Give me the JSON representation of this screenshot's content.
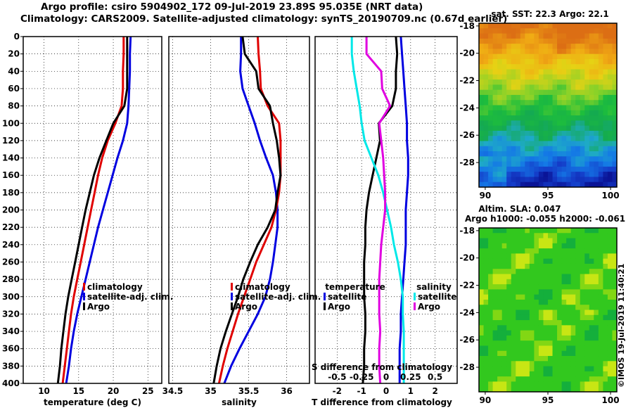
{
  "title": {
    "line1": "Argo profile: csiro 5904902_172 09-Jul-2019 23.89S 95.035E (NRT data)",
    "line2": "Climatology: CARS2009. Satellite-adjusted climatology: synTS_20190709.nc (0.67d earlier)"
  },
  "stamp": "©IMOS 19-Jul-2019 11:40:21",
  "colors": {
    "climatology": "#e00000",
    "satellite": "#0000e0",
    "argo": "#000000",
    "sal_sat": "#00e8e8",
    "sal_argo": "#e000e0"
  },
  "chart_data": [
    {
      "type": "line",
      "xlabel": "temperature (deg C)",
      "xlim": [
        7,
        27
      ],
      "ylim": [
        400,
        0
      ],
      "xticks": [
        10,
        15,
        20,
        25
      ],
      "yticks": [
        0,
        20,
        40,
        60,
        80,
        100,
        120,
        140,
        160,
        180,
        200,
        220,
        240,
        260,
        280,
        300,
        320,
        340,
        360,
        380,
        400
      ],
      "legend": [
        "climatology",
        "satellite-adj. clim.",
        "Argo"
      ],
      "depth": [
        0,
        20,
        40,
        60,
        80,
        100,
        120,
        140,
        160,
        180,
        200,
        220,
        240,
        260,
        280,
        300,
        320,
        340,
        360,
        380,
        400
      ],
      "series": [
        {
          "name": "climatology",
          "values": [
            21.5,
            21.5,
            21.4,
            21.4,
            21.2,
            20.3,
            19.2,
            18.4,
            17.8,
            17.3,
            16.8,
            16.3,
            15.8,
            15.3,
            14.8,
            14.3,
            13.9,
            13.6,
            13.3,
            13.0,
            12.7
          ]
        },
        {
          "name": "satellite-adj. clim.",
          "values": [
            22.5,
            22.4,
            22.4,
            22.3,
            22.2,
            22.0,
            21.4,
            20.6,
            19.9,
            19.2,
            18.5,
            17.8,
            17.2,
            16.6,
            16.0,
            15.4,
            14.8,
            14.3,
            13.9,
            13.6,
            13.2
          ]
        },
        {
          "name": "Argo",
          "values": [
            22.0,
            22.0,
            22.0,
            22.0,
            21.6,
            20.0,
            19.0,
            18.0,
            17.2,
            16.6,
            16.0,
            15.5,
            15.0,
            14.5,
            14.0,
            13.5,
            13.1,
            12.8,
            12.5,
            12.3,
            12.0
          ]
        }
      ]
    },
    {
      "type": "line",
      "xlabel": "salinity",
      "xlim": [
        34.45,
        36.3
      ],
      "ylim": [
        400,
        0
      ],
      "xticks": [
        34.5,
        35,
        35.5,
        36
      ],
      "xtick_labels": [
        "34.5",
        "35",
        "35.5",
        "36"
      ],
      "legend": [
        "climatology",
        "satellite-adj. clim.",
        "Argo"
      ],
      "depth": [
        0,
        20,
        40,
        60,
        80,
        100,
        120,
        140,
        160,
        180,
        200,
        220,
        240,
        260,
        280,
        300,
        320,
        340,
        360,
        380,
        400
      ],
      "series": [
        {
          "name": "climatology",
          "values": [
            35.62,
            35.63,
            35.65,
            35.66,
            35.75,
            35.9,
            35.92,
            35.92,
            35.92,
            35.9,
            35.86,
            35.8,
            35.7,
            35.6,
            35.52,
            35.44,
            35.36,
            35.29,
            35.22,
            35.16,
            35.11
          ]
        },
        {
          "name": "satellite-adj. clim.",
          "values": [
            35.4,
            35.4,
            35.39,
            35.42,
            35.5,
            35.58,
            35.65,
            35.73,
            35.82,
            35.86,
            35.88,
            35.88,
            35.85,
            35.82,
            35.78,
            35.72,
            35.62,
            35.5,
            35.38,
            35.27,
            35.18
          ]
        },
        {
          "name": "Argo",
          "values": [
            35.42,
            35.45,
            35.6,
            35.63,
            35.78,
            35.82,
            35.87,
            35.9,
            35.92,
            35.88,
            35.85,
            35.75,
            35.62,
            35.52,
            35.43,
            35.36,
            35.28,
            35.2,
            35.13,
            35.08,
            35.04
          ]
        }
      ]
    },
    {
      "type": "line",
      "xlabel": "T difference from climatology",
      "xlabel_top": "S difference from climatology",
      "xlim": [
        -2.9,
        2.9
      ],
      "ylim": [
        400,
        0
      ],
      "xticks": [
        -2,
        -1,
        0,
        1,
        2
      ],
      "sal_ticks": [
        -0.5,
        -0.25,
        0,
        0.25,
        0.5
      ],
      "sal_tick_labels": [
        "-0.5",
        "-0.25",
        "0",
        "0.25",
        "0.5"
      ],
      "legend_titles": [
        "temperature",
        "salinity"
      ],
      "legend": [
        "satellite",
        "Argo",
        "satellite",
        "Argo"
      ],
      "depth": [
        0,
        20,
        40,
        60,
        80,
        100,
        120,
        140,
        160,
        180,
        200,
        220,
        240,
        260,
        280,
        300,
        320,
        340,
        360,
        380,
        400
      ],
      "series": [
        {
          "name": "temperature satellite",
          "values": [
            0.6,
            0.65,
            0.7,
            0.75,
            0.8,
            0.85,
            0.85,
            0.9,
            0.9,
            0.85,
            0.8,
            0.8,
            0.8,
            0.75,
            0.7,
            0.65,
            0.6,
            0.6,
            0.55,
            0.55,
            0.55
          ]
        },
        {
          "name": "temperature Argo",
          "values": [
            0.4,
            0.45,
            0.4,
            0.4,
            0.25,
            -0.3,
            -0.25,
            -0.4,
            -0.55,
            -0.7,
            -0.8,
            -0.85,
            -0.85,
            -0.9,
            -0.9,
            -0.9,
            -0.85,
            -0.85,
            -0.9,
            -0.9,
            -0.95
          ]
        },
        {
          "name": "salinity satellite",
          "values": [
            -0.35,
            -0.35,
            -0.33,
            -0.3,
            -0.27,
            -0.25,
            -0.22,
            -0.15,
            -0.08,
            -0.03,
            0.01,
            0.05,
            0.08,
            0.12,
            0.15,
            0.17,
            0.17,
            0.18,
            0.18,
            0.18,
            0.18
          ]
        },
        {
          "name": "salinity Argo",
          "values": [
            -0.2,
            -0.2,
            -0.05,
            -0.04,
            0.04,
            -0.07,
            -0.05,
            -0.03,
            -0.02,
            -0.01,
            -0.01,
            -0.03,
            -0.05,
            -0.06,
            -0.07,
            -0.07,
            -0.07,
            -0.06,
            -0.07,
            -0.07,
            -0.06
          ]
        }
      ]
    },
    {
      "type": "heatmap",
      "title": "sat. SST: 22.3 Argo: 22.1",
      "x_range": [
        89.5,
        100.5
      ],
      "y_range": [
        -29.8,
        -17.8
      ],
      "xticks": [
        90,
        95,
        100
      ],
      "yticks": [
        -18,
        -20,
        -22,
        -24,
        -26,
        -28
      ]
    },
    {
      "type": "heatmap",
      "title": "Altim. SLA: 0.047",
      "subtitle": "Argo h1000: -0.055 h2000: -0.061",
      "x_range": [
        89.5,
        100.5
      ],
      "y_range": [
        -29.8,
        -17.8
      ],
      "xticks": [
        90,
        95,
        100
      ],
      "yticks": [
        -18,
        -20,
        -22,
        -24,
        -26,
        -28
      ]
    }
  ]
}
